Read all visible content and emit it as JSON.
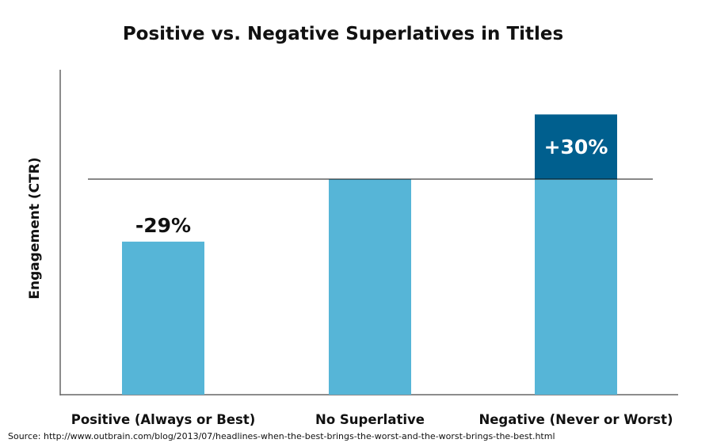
{
  "chart_data": {
    "type": "bar",
    "title": "Positive vs. Negative Superlatives in Titles",
    "ylabel": "Engagement (CTR)",
    "xlabel": "",
    "categories": [
      "Positive (Always or Best)",
      "No Superlative",
      "Negative (Never or Worst)"
    ],
    "values": [
      71,
      100,
      130
    ],
    "ylim": [
      0,
      150
    ],
    "baseline_value": 100,
    "data_labels": [
      "-29%",
      "",
      "+30%"
    ],
    "grid": false,
    "colors": {
      "bar": "#56b5d7",
      "increase": "#005f8e",
      "reference_line": "#111111",
      "axis": "#666666"
    }
  },
  "source": "Source: http://www.outbrain.com/blog/2013/07/headlines-when-the-best-brings-the-worst-and-the-worst-brings-the-best.html"
}
